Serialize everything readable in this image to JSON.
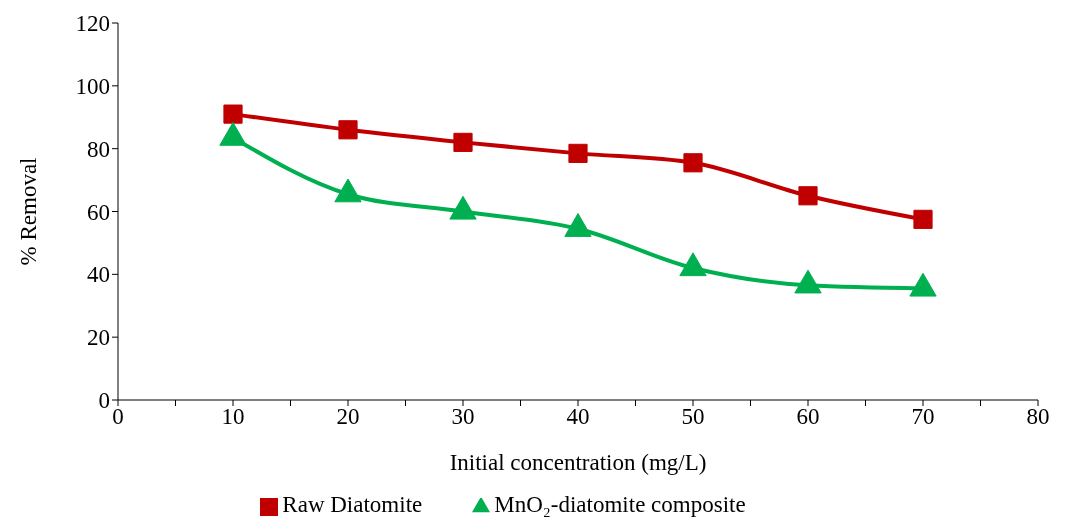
{
  "chart_data": {
    "type": "line",
    "xlabel": "Initial concentration (mg/L)",
    "ylabel": "% Removal",
    "x": [
      10,
      20,
      30,
      40,
      50,
      60,
      70
    ],
    "series": [
      {
        "name": "Raw Diatomite",
        "color": "#c00000",
        "marker": "square",
        "values": [
          91,
          86,
          82,
          78.5,
          75.5,
          65,
          57.5
        ]
      },
      {
        "name": "MnO₂-diatomite composite",
        "color": "#00b050",
        "marker": "triangle",
        "values": [
          83.5,
          65.5,
          60,
          54.5,
          42,
          36.5,
          35.5
        ]
      }
    ],
    "xlim": [
      0,
      80
    ],
    "xticks": [
      0,
      {
        "value": 5,
        "label": null
      },
      10,
      {
        "value": 15,
        "label": null
      },
      20,
      {
        "value": 25,
        "label": null
      },
      30,
      {
        "value": 35,
        "label": null
      },
      40,
      {
        "value": 45,
        "label": null
      },
      50,
      {
        "value": 55,
        "label": null
      },
      60,
      {
        "value": 65,
        "label": null
      },
      70,
      {
        "value": 75,
        "label": null
      },
      80
    ],
    "ylim": [
      0,
      120
    ],
    "yticks": [
      0,
      20,
      40,
      60,
      80,
      100,
      120
    ],
    "grid": false,
    "legend": "bottom",
    "line_style": "solid"
  }
}
